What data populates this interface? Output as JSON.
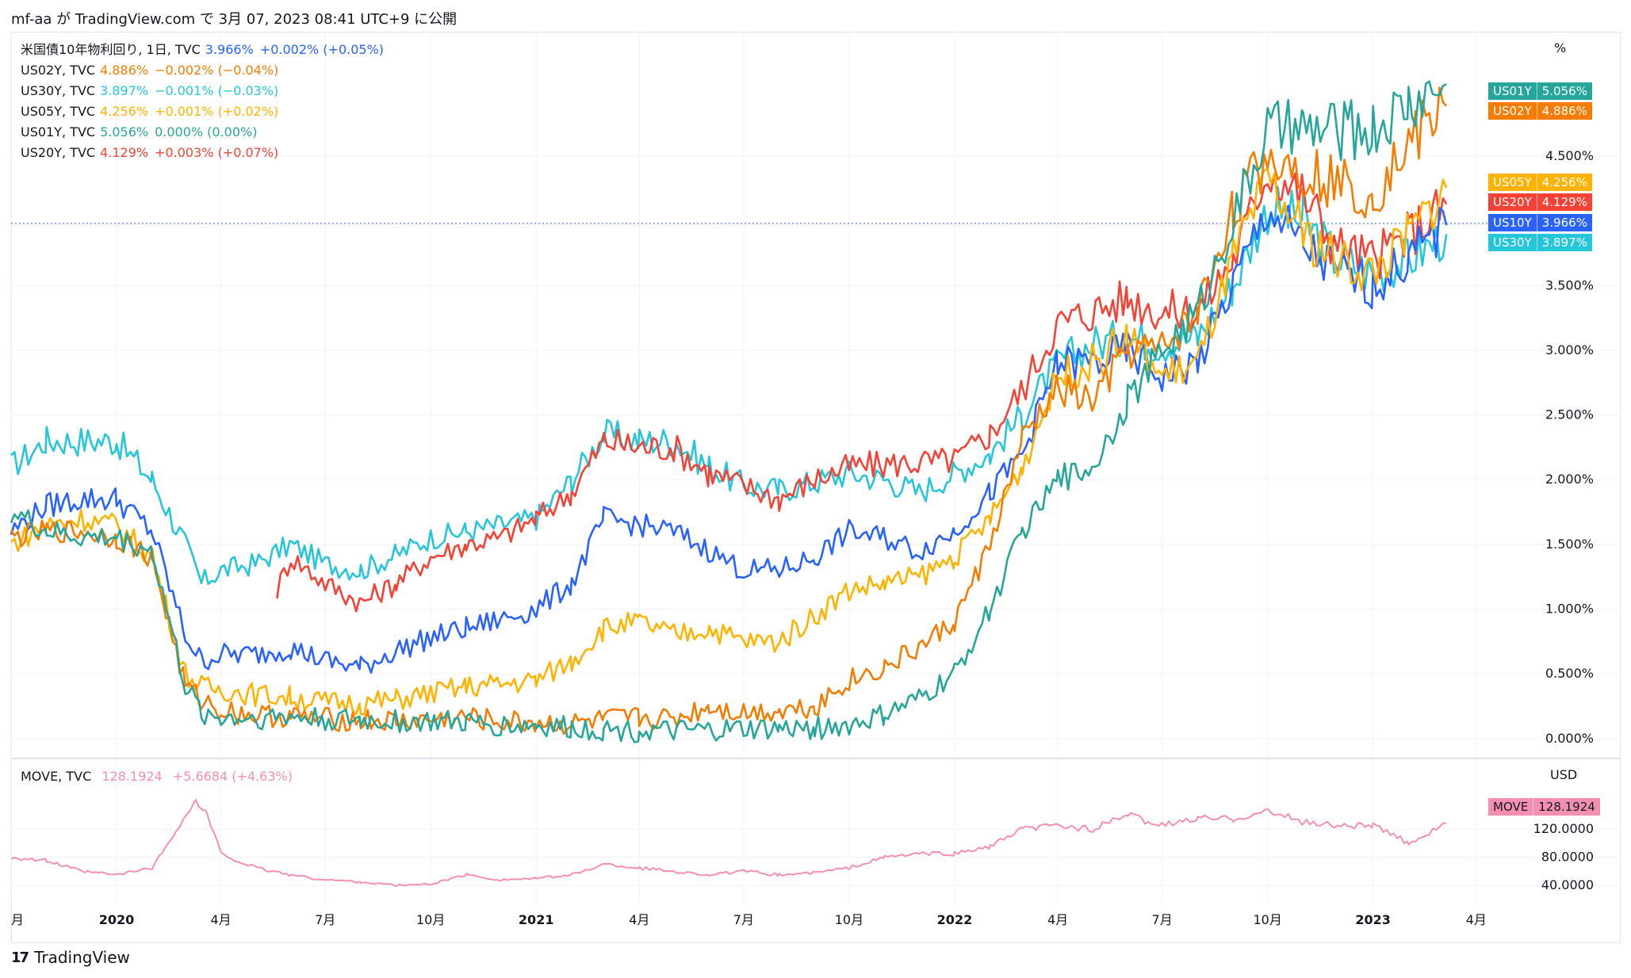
{
  "header": {
    "text": "mf-aa が TradingView.com で 3月 07, 2023 08:41 UTC+9 に公開"
  },
  "footer": {
    "brand": "TradingView"
  },
  "legend": [
    {
      "name": "米国債10年物利回り, 1日, TVC",
      "value": "3.966%",
      "change": "+0.002% (+0.05%)",
      "color": "#2962ff"
    },
    {
      "name": "US02Y, TVC",
      "value": "4.886%",
      "change": "−0.002% (−0.04%)",
      "color": "#f57c00"
    },
    {
      "name": "US30Y, TVC",
      "value": "3.897%",
      "change": "−0.001% (−0.03%)",
      "color": "#26c6da"
    },
    {
      "name": "US05Y, TVC",
      "value": "4.256%",
      "change": "+0.001% (+0.02%)",
      "color": "#ffb300"
    },
    {
      "name": "US01Y, TVC",
      "value": "5.056%",
      "change": "0.000% (0.00%)",
      "color": "#26a69a"
    },
    {
      "name": "US20Y, TVC",
      "value": "4.129%",
      "change": "+0.003% (+0.07%)",
      "color": "#f44336"
    }
  ],
  "move_legend": {
    "name": "MOVE, TVC",
    "value": "128.1924",
    "change": "+5.6684 (+4.63%)",
    "color": "#f48fb1"
  },
  "price_tags": [
    {
      "label": "US01Y",
      "value": "5.056%",
      "color": "#26a69a"
    },
    {
      "label": "US02Y",
      "value": "4.886%",
      "color": "#f57c00"
    },
    {
      "label": "US05Y",
      "value": "4.256%",
      "color": "#ffb300"
    },
    {
      "label": "US20Y",
      "value": "4.129%",
      "color": "#f44336"
    },
    {
      "label": "US10Y",
      "value": "3.966%",
      "color": "#2962ff"
    },
    {
      "label": "US30Y",
      "value": "3.897%",
      "color": "#26c6da"
    }
  ],
  "move_tag": {
    "label": "MOVE",
    "value": "128.1924",
    "color": "#f48fb1"
  },
  "chart_data": [
    {
      "type": "line",
      "unit": "%",
      "ylim": [
        -0.05,
        5.4
      ],
      "y_ticks": [
        "0.000%",
        "0.500%",
        "1.000%",
        "1.500%",
        "2.000%",
        "2.500%",
        "3.000%",
        "3.500%",
        "4.500%"
      ],
      "y_tick_values": [
        0,
        0.5,
        1.0,
        1.5,
        2.0,
        2.5,
        3.0,
        3.5,
        4.5
      ],
      "x_ticks": [
        "月",
        "2020",
        "4月",
        "7月",
        "10月",
        "2021",
        "4月",
        "7月",
        "10月",
        "2022",
        "4月",
        "7月",
        "10月",
        "2023",
        "4月"
      ],
      "x_tick_dates": [
        "2019-10-01",
        "2020-01-01",
        "2020-04-01",
        "2020-07-01",
        "2020-10-01",
        "2021-01-01",
        "2021-04-01",
        "2021-07-01",
        "2021-10-01",
        "2022-01-01",
        "2022-04-01",
        "2022-07-01",
        "2022-10-01",
        "2023-01-01",
        "2023-04-01"
      ],
      "x_range": [
        "2019-10-01",
        "2023-06-01"
      ],
      "grid": true,
      "series": [
        {
          "name": "US30Y",
          "color": "#26c6da",
          "x": [
            "2019-10-01",
            "2019-11-01",
            "2019-12-01",
            "2020-01-01",
            "2020-02-01",
            "2020-03-01",
            "2020-03-15",
            "2020-04-01",
            "2020-05-01",
            "2020-06-01",
            "2020-07-01",
            "2020-08-01",
            "2020-09-01",
            "2020-10-01",
            "2020-11-01",
            "2020-12-01",
            "2021-01-01",
            "2021-02-01",
            "2021-03-01",
            "2021-04-01",
            "2021-05-01",
            "2021-06-01",
            "2021-07-01",
            "2021-08-01",
            "2021-09-01",
            "2021-10-01",
            "2021-11-01",
            "2021-12-01",
            "2022-01-01",
            "2022-02-01",
            "2022-03-01",
            "2022-04-01",
            "2022-05-01",
            "2022-06-01",
            "2022-07-01",
            "2022-08-01",
            "2022-09-01",
            "2022-10-01",
            "2022-11-01",
            "2022-12-01",
            "2023-01-01",
            "2023-02-01",
            "2023-03-06"
          ],
          "values": [
            2.1,
            2.3,
            2.3,
            2.3,
            2.0,
            1.5,
            1.2,
            1.3,
            1.35,
            1.5,
            1.35,
            1.3,
            1.42,
            1.55,
            1.6,
            1.65,
            1.7,
            2.0,
            2.35,
            2.3,
            2.3,
            2.1,
            1.95,
            1.92,
            1.98,
            2.05,
            2.0,
            1.9,
            2.05,
            2.2,
            2.5,
            2.9,
            3.05,
            3.1,
            3.05,
            3.1,
            3.5,
            4.1,
            4.0,
            3.7,
            3.6,
            3.7,
            3.897
          ]
        },
        {
          "name": "US20Y",
          "color": "#f44336",
          "x": [
            "2020-05-20",
            "2020-06-01",
            "2020-07-01",
            "2020-08-01",
            "2020-09-01",
            "2020-10-01",
            "2020-11-01",
            "2020-12-01",
            "2021-01-01",
            "2021-02-01",
            "2021-03-01",
            "2021-04-01",
            "2021-05-01",
            "2021-06-01",
            "2021-07-01",
            "2021-08-01",
            "2021-09-01",
            "2021-10-01",
            "2022-01-01",
            "2022-02-01",
            "2022-03-01",
            "2022-04-01",
            "2022-05-01",
            "2022-06-01",
            "2022-07-01",
            "2022-08-01",
            "2022-09-01",
            "2022-10-01",
            "2022-11-01",
            "2022-12-01",
            "2023-01-01",
            "2023-02-01",
            "2023-03-06"
          ],
          "values": [
            1.15,
            1.4,
            1.2,
            1.05,
            1.2,
            1.4,
            1.5,
            1.55,
            1.7,
            1.9,
            2.3,
            2.25,
            2.25,
            2.05,
            1.95,
            1.85,
            2.0,
            2.1,
            2.15,
            2.35,
            2.7,
            3.2,
            3.3,
            3.4,
            3.3,
            3.3,
            3.7,
            4.4,
            4.2,
            3.8,
            3.7,
            3.9,
            4.129
          ]
        },
        {
          "name": "US10Y",
          "color": "#2962ff",
          "x": [
            "2019-10-01",
            "2019-11-01",
            "2019-12-01",
            "2020-01-01",
            "2020-02-01",
            "2020-03-01",
            "2020-03-15",
            "2020-04-01",
            "2020-05-01",
            "2020-06-01",
            "2020-07-01",
            "2020-08-01",
            "2020-09-01",
            "2020-10-01",
            "2020-11-01",
            "2020-12-01",
            "2021-01-01",
            "2021-02-01",
            "2021-03-01",
            "2021-04-01",
            "2021-05-01",
            "2021-06-01",
            "2021-07-01",
            "2021-08-01",
            "2021-09-01",
            "2021-10-01",
            "2021-11-01",
            "2021-12-01",
            "2022-01-01",
            "2022-02-01",
            "2022-03-01",
            "2022-04-01",
            "2022-05-01",
            "2022-06-01",
            "2022-07-01",
            "2022-08-01",
            "2022-09-01",
            "2022-10-01",
            "2022-11-01",
            "2022-12-01",
            "2023-01-01",
            "2023-02-01",
            "2023-03-06"
          ],
          "values": [
            1.6,
            1.8,
            1.85,
            1.85,
            1.6,
            0.8,
            0.6,
            0.65,
            0.65,
            0.7,
            0.6,
            0.55,
            0.68,
            0.78,
            0.85,
            0.92,
            1.0,
            1.2,
            1.7,
            1.65,
            1.6,
            1.45,
            1.3,
            1.3,
            1.4,
            1.6,
            1.55,
            1.45,
            1.6,
            1.9,
            2.2,
            2.9,
            2.9,
            3.0,
            2.8,
            2.9,
            3.5,
            4.1,
            3.8,
            3.6,
            3.5,
            3.7,
            3.966
          ]
        },
        {
          "name": "US05Y",
          "color": "#ffb300",
          "x": [
            "2019-10-01",
            "2019-11-01",
            "2019-12-01",
            "2020-01-01",
            "2020-02-01",
            "2020-03-01",
            "2020-03-15",
            "2020-04-01",
            "2020-05-01",
            "2020-06-01",
            "2020-07-01",
            "2020-08-01",
            "2020-09-01",
            "2020-10-01",
            "2020-11-01",
            "2020-12-01",
            "2021-01-01",
            "2021-02-01",
            "2021-03-01",
            "2021-04-01",
            "2021-05-01",
            "2021-06-01",
            "2021-07-01",
            "2021-08-01",
            "2021-09-01",
            "2021-10-01",
            "2021-11-01",
            "2021-12-01",
            "2022-01-01",
            "2022-02-01",
            "2022-03-01",
            "2022-04-01",
            "2022-05-01",
            "2022-06-01",
            "2022-07-01",
            "2022-08-01",
            "2022-09-01",
            "2022-10-01",
            "2022-11-01",
            "2022-12-01",
            "2023-01-01",
            "2023-02-01",
            "2023-03-06"
          ],
          "values": [
            1.5,
            1.65,
            1.7,
            1.65,
            1.4,
            0.5,
            0.4,
            0.38,
            0.34,
            0.32,
            0.28,
            0.27,
            0.3,
            0.35,
            0.4,
            0.42,
            0.45,
            0.6,
            0.85,
            0.9,
            0.8,
            0.85,
            0.75,
            0.75,
            0.95,
            1.15,
            1.2,
            1.25,
            1.4,
            1.7,
            2.1,
            2.8,
            2.9,
            3.1,
            2.8,
            2.9,
            3.7,
            4.3,
            3.9,
            3.7,
            3.6,
            3.9,
            4.256
          ]
        },
        {
          "name": "US02Y",
          "color": "#f57c00",
          "x": [
            "2019-10-01",
            "2019-11-01",
            "2019-12-01",
            "2020-01-01",
            "2020-02-01",
            "2020-03-01",
            "2020-03-15",
            "2020-04-01",
            "2020-05-01",
            "2020-06-01",
            "2020-07-01",
            "2020-08-01",
            "2020-09-01",
            "2020-10-01",
            "2020-11-01",
            "2020-12-01",
            "2021-01-01",
            "2021-02-01",
            "2021-03-01",
            "2021-04-01",
            "2021-05-01",
            "2021-06-01",
            "2021-07-01",
            "2021-08-01",
            "2021-09-01",
            "2021-10-01",
            "2021-11-01",
            "2021-12-01",
            "2022-01-01",
            "2022-02-01",
            "2022-03-01",
            "2022-04-01",
            "2022-05-01",
            "2022-06-01",
            "2022-07-01",
            "2022-08-01",
            "2022-09-01",
            "2022-10-01",
            "2022-11-01",
            "2022-12-01",
            "2023-01-01",
            "2023-02-01",
            "2023-03-06"
          ],
          "values": [
            1.55,
            1.6,
            1.6,
            1.55,
            1.4,
            0.4,
            0.3,
            0.22,
            0.18,
            0.17,
            0.15,
            0.14,
            0.13,
            0.14,
            0.16,
            0.13,
            0.12,
            0.11,
            0.14,
            0.16,
            0.15,
            0.25,
            0.2,
            0.22,
            0.25,
            0.45,
            0.55,
            0.7,
            0.9,
            1.5,
            2.3,
            2.7,
            2.6,
            3.0,
            3.0,
            3.3,
            4.1,
            4.5,
            4.4,
            4.3,
            4.2,
            4.6,
            4.886
          ]
        },
        {
          "name": "US01Y",
          "color": "#26a69a",
          "x": [
            "2019-10-01",
            "2019-11-01",
            "2019-12-01",
            "2020-01-01",
            "2020-02-01",
            "2020-03-01",
            "2020-03-15",
            "2020-04-01",
            "2020-05-01",
            "2020-06-01",
            "2020-07-01",
            "2020-08-01",
            "2020-09-01",
            "2020-10-01",
            "2020-11-01",
            "2020-12-01",
            "2021-01-01",
            "2021-02-01",
            "2021-03-01",
            "2021-04-01",
            "2021-05-01",
            "2021-06-01",
            "2021-07-01",
            "2021-08-01",
            "2021-09-01",
            "2021-10-01",
            "2021-11-01",
            "2021-12-01",
            "2022-01-01",
            "2022-02-01",
            "2022-03-01",
            "2022-04-01",
            "2022-05-01",
            "2022-06-01",
            "2022-07-01",
            "2022-08-01",
            "2022-09-01",
            "2022-10-01",
            "2022-11-01",
            "2022-12-01",
            "2023-01-01",
            "2023-02-01",
            "2023-03-06"
          ],
          "values": [
            1.75,
            1.6,
            1.55,
            1.55,
            1.45,
            0.4,
            0.2,
            0.16,
            0.16,
            0.17,
            0.15,
            0.14,
            0.13,
            0.13,
            0.12,
            0.1,
            0.1,
            0.08,
            0.07,
            0.06,
            0.05,
            0.06,
            0.07,
            0.07,
            0.08,
            0.1,
            0.18,
            0.3,
            0.5,
            1.0,
            1.6,
            2.0,
            2.1,
            2.6,
            3.0,
            3.3,
            4.0,
            4.7,
            4.7,
            4.7,
            4.7,
            4.9,
            5.056
          ]
        }
      ]
    },
    {
      "type": "line",
      "unit": "USD",
      "ylim": [
        20,
        200
      ],
      "y_ticks": [
        "40.0000",
        "80.0000",
        "120.0000"
      ],
      "y_tick_values": [
        40,
        80,
        120
      ],
      "series": [
        {
          "name": "MOVE",
          "color": "#f48fb1",
          "x": [
            "2019-10-01",
            "2019-11-01",
            "2019-12-01",
            "2020-01-01",
            "2020-02-01",
            "2020-03-10",
            "2020-03-20",
            "2020-04-01",
            "2020-05-01",
            "2020-06-01",
            "2020-07-01",
            "2020-08-01",
            "2020-09-01",
            "2020-10-01",
            "2020-11-01",
            "2020-12-01",
            "2021-01-01",
            "2021-02-01",
            "2021-03-01",
            "2021-04-01",
            "2021-05-01",
            "2021-06-01",
            "2021-07-01",
            "2021-08-01",
            "2021-09-01",
            "2021-10-01",
            "2021-11-01",
            "2021-12-01",
            "2022-01-01",
            "2022-02-01",
            "2022-03-01",
            "2022-04-01",
            "2022-05-01",
            "2022-06-01",
            "2022-07-01",
            "2022-08-01",
            "2022-09-01",
            "2022-10-01",
            "2022-11-01",
            "2022-12-01",
            "2023-01-01",
            "2023-02-01",
            "2023-03-06"
          ],
          "values": [
            80,
            75,
            60,
            55,
            65,
            160,
            140,
            85,
            65,
            55,
            48,
            45,
            40,
            42,
            55,
            48,
            50,
            55,
            70,
            65,
            60,
            55,
            60,
            55,
            58,
            65,
            80,
            85,
            85,
            95,
            120,
            125,
            120,
            140,
            125,
            135,
            135,
            145,
            130,
            125,
            125,
            100,
            128.19
          ]
        }
      ]
    }
  ]
}
